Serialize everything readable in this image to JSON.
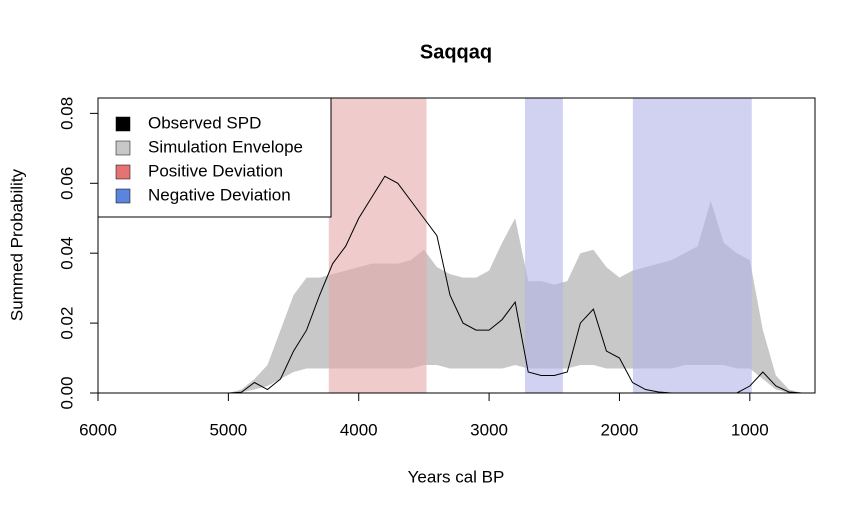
{
  "chart_data": {
    "type": "spd",
    "title": "Saqqaq",
    "xlabel": "Years cal BP",
    "ylabel": "Summed Probability",
    "xlim": [
      6000,
      500
    ],
    "ylim": [
      0,
      0.0844
    ],
    "xticks": [
      6000,
      5000,
      4000,
      3000,
      2000,
      1000
    ],
    "yticks": [
      {
        "value": 0,
        "label": "0.00"
      },
      {
        "value": 0.02,
        "label": "0.02"
      },
      {
        "value": 0.04,
        "label": "0.04"
      },
      {
        "value": 0.06,
        "label": "0.06"
      },
      {
        "value": 0.08,
        "label": "0.08"
      }
    ],
    "x": [
      6000,
      5900,
      5800,
      5700,
      5600,
      5500,
      5400,
      5300,
      5200,
      5100,
      5000,
      4900,
      4800,
      4700,
      4600,
      4500,
      4400,
      4300,
      4200,
      4100,
      4000,
      3900,
      3800,
      3700,
      3600,
      3500,
      3400,
      3300,
      3200,
      3100,
      3000,
      2900,
      2800,
      2700,
      2600,
      2500,
      2400,
      2300,
      2200,
      2100,
      2000,
      1900,
      1800,
      1700,
      1600,
      1500,
      1400,
      1300,
      1200,
      1100,
      1000,
      900,
      800,
      700,
      600,
      500
    ],
    "observed": {
      "name": "Observed SPD",
      "color": "#000000",
      "values": [
        0,
        0,
        0,
        0,
        0,
        0,
        0,
        0,
        0,
        0,
        0,
        0.0002,
        0.003,
        0.001,
        0.004,
        0.012,
        0.018,
        0.028,
        0.037,
        0.042,
        0.05,
        0.056,
        0.062,
        0.06,
        0.055,
        0.05,
        0.045,
        0.028,
        0.02,
        0.018,
        0.018,
        0.021,
        0.026,
        0.006,
        0.005,
        0.005,
        0.006,
        0.02,
        0.024,
        0.012,
        0.01,
        0.003,
        0.001,
        0.0003,
        0,
        0,
        0,
        0,
        0,
        0,
        0.002,
        0.006,
        0.002,
        0.0003,
        0,
        0
      ]
    },
    "envelope": {
      "name": "Simulation Envelope",
      "color": "#c8c8c8",
      "lower": [
        0,
        0,
        0,
        0,
        0,
        0,
        0,
        0,
        0,
        0,
        0,
        0.0002,
        0.001,
        0.002,
        0.004,
        0.006,
        0.007,
        0.007,
        0.007,
        0.007,
        0.007,
        0.007,
        0.007,
        0.007,
        0.007,
        0.008,
        0.008,
        0.007,
        0.007,
        0.007,
        0.007,
        0.007,
        0.008,
        0.007,
        0.007,
        0.007,
        0.007,
        0.008,
        0.008,
        0.007,
        0.007,
        0.007,
        0.007,
        0.007,
        0.007,
        0.008,
        0.008,
        0.008,
        0.008,
        0.007,
        0.007,
        0.004,
        0.001,
        0,
        0,
        0
      ],
      "upper": [
        0,
        0,
        0,
        0,
        0,
        0,
        0,
        0,
        0,
        0,
        0,
        0.001,
        0.004,
        0.008,
        0.018,
        0.028,
        0.033,
        0.033,
        0.034,
        0.035,
        0.036,
        0.037,
        0.037,
        0.037,
        0.038,
        0.041,
        0.036,
        0.034,
        0.033,
        0.033,
        0.035,
        0.043,
        0.05,
        0.032,
        0.032,
        0.031,
        0.032,
        0.04,
        0.041,
        0.036,
        0.033,
        0.035,
        0.036,
        0.037,
        0.038,
        0.04,
        0.042,
        0.055,
        0.043,
        0.04,
        0.038,
        0.018,
        0.005,
        0.001,
        0,
        0
      ]
    },
    "positive": {
      "name": "Positive Deviation",
      "color": "#e57373",
      "shade": "#e6a8a8",
      "regions": [
        [
          4230,
          3480
        ]
      ]
    },
    "negative": {
      "name": "Negative Deviation",
      "color": "#5b84dc",
      "shade": "#b3b3ea",
      "regions": [
        [
          2725,
          2434
        ],
        [
          1897,
          985
        ]
      ]
    }
  }
}
